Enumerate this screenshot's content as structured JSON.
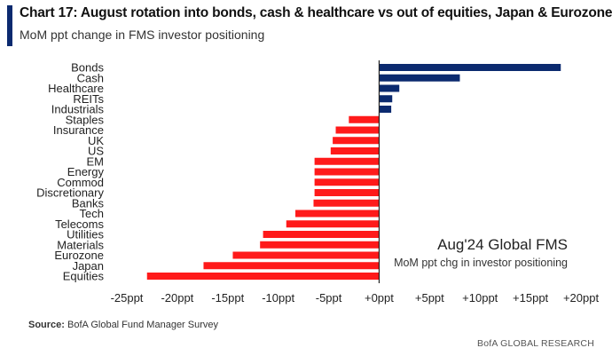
{
  "header": {
    "title": "Chart 17: August rotation into bonds, cash & healthcare vs out of equities, Japan & Eurozone",
    "subtitle": "MoM ppt change in FMS investor positioning"
  },
  "source": {
    "label": "Source:",
    "text": "BofA Global Fund Manager Survey"
  },
  "footer": {
    "brand": "BofA GLOBAL RESEARCH"
  },
  "chart_data": {
    "type": "bar",
    "orientation": "horizontal",
    "title": "Chart 17: August rotation into bonds, cash & healthcare vs out of equities, Japan & Eurozone",
    "subtitle": "MoM ppt change in FMS investor positioning",
    "xlabel": "",
    "ylabel": "",
    "xlim": [
      -25,
      20
    ],
    "x_ticks": [
      -25,
      -20,
      -15,
      -10,
      -5,
      0,
      5,
      10,
      15,
      20
    ],
    "x_tick_labels": [
      "-25ppt",
      "-20ppt",
      "-15ppt",
      "-10ppt",
      "-5ppt",
      "+0ppt",
      "+5ppt",
      "+10ppt",
      "+15ppt",
      "+20ppt"
    ],
    "categories": [
      "Bonds",
      "Cash",
      "Healthcare",
      "REITs",
      "Industrials",
      "Staples",
      "Insurance",
      "UK",
      "US",
      "EM",
      "Energy",
      "Commod",
      "Discretionary",
      "Banks",
      "Tech",
      "Telecoms",
      "Utilities",
      "Materials",
      "Eurozone",
      "Japan",
      "Equities"
    ],
    "values": [
      18,
      8,
      2,
      1.3,
      1.2,
      -3,
      -4.3,
      -4.6,
      -4.8,
      -6.4,
      -6.4,
      -6.4,
      -6.4,
      -6.5,
      -8.3,
      -9.2,
      -11.5,
      -11.8,
      -14.5,
      -17.4,
      -23
    ],
    "positive_color": "#0b2a6f",
    "negative_color": "#ff1a1a",
    "grid": false,
    "annotation": {
      "title": "Aug'24 Global FMS",
      "subtitle": "MoM ppt chg in investor positioning"
    }
  }
}
